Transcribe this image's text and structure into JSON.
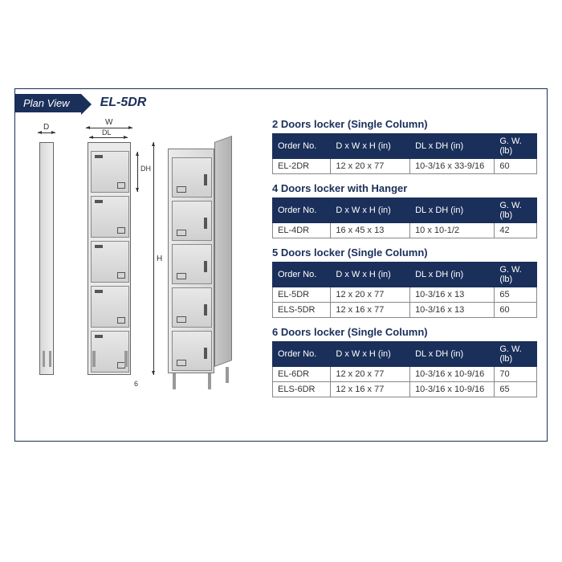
{
  "header": {
    "tab": "Plan View",
    "model": "EL-5DR"
  },
  "diagram": {
    "labels": {
      "D": "D",
      "W": "W",
      "DL": "DL",
      "DH": "DH",
      "H": "H",
      "leg": "6"
    }
  },
  "columns": [
    "Order No.",
    "D x W x H (in)",
    "DL x DH (in)",
    "G. W. (lb)"
  ],
  "sections": [
    {
      "title": "2 Doors locker (Single Column)",
      "rows": [
        {
          "order": "EL-2DR",
          "dims": "12 x 20 x 77",
          "door": "10-3/16 x 33-9/16",
          "gw": "60"
        }
      ]
    },
    {
      "title": "4 Doors locker with Hanger",
      "rows": [
        {
          "order": "EL-4DR",
          "dims": "16 x 45 x 13",
          "door": "10 x 10-1/2",
          "gw": "42"
        }
      ]
    },
    {
      "title": "5 Doors locker (Single Column)",
      "rows": [
        {
          "order": "EL-5DR",
          "dims": "12 x 20 x 77",
          "door": "10-3/16 x 13",
          "gw": "65"
        },
        {
          "order": "ELS-5DR",
          "dims": "12 x 16 x 77",
          "door": "10-3/16 x 13",
          "gw": "60"
        }
      ]
    },
    {
      "title": "6 Doors locker (Single Column)",
      "rows": [
        {
          "order": "EL-6DR",
          "dims": "12 x 20 x 77",
          "door": "10-3/16 x 10-9/16",
          "gw": "70"
        },
        {
          "order": "ELS-6DR",
          "dims": "12 x 16 x 77",
          "door": "10-3/16 x 10-9/16",
          "gw": "65"
        }
      ]
    }
  ],
  "style": {
    "header_bg": "#1a2f5a",
    "header_fg": "#ffffff",
    "border": "#1a2f5a",
    "cell_border": "#888888",
    "col_widths": [
      "22%",
      "30%",
      "32%",
      "16%"
    ]
  }
}
